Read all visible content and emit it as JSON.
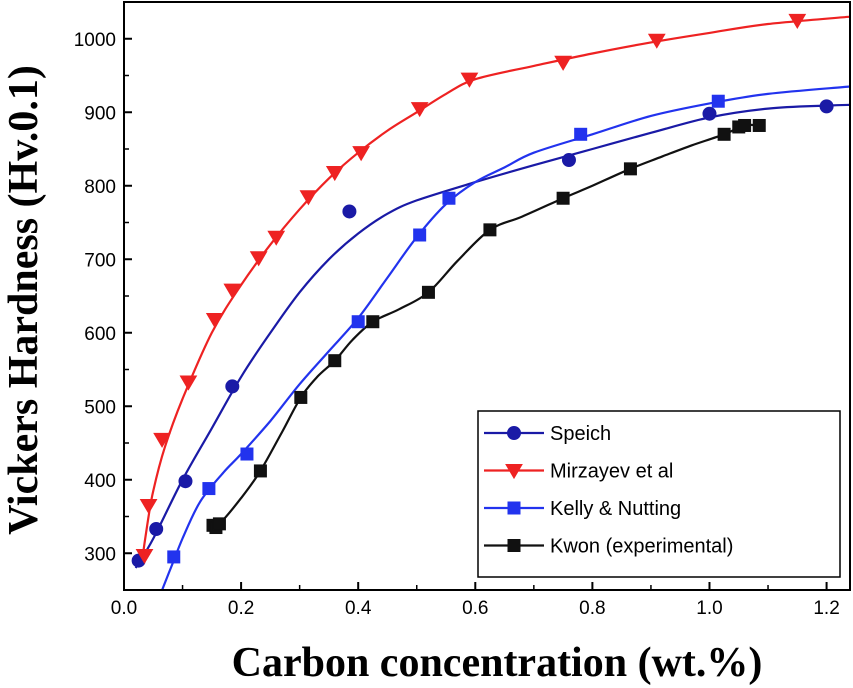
{
  "chart_data": {
    "type": "scatter",
    "xlabel": "Carbon concentration (wt.%)",
    "ylabel": "Vickers Hardness (Hv.0.1)",
    "xlim": [
      0,
      1.24
    ],
    "ylim": [
      250,
      1050
    ],
    "x_ticks": [
      "0.0",
      "0.2",
      "0.4",
      "0.6",
      "0.8",
      "1.0",
      "1.2"
    ],
    "y_ticks": [
      "300",
      "400",
      "500",
      "600",
      "700",
      "800",
      "900",
      "1000"
    ],
    "legend_position": "bottom-right",
    "grid": false,
    "series": [
      {
        "name": "Speich",
        "color": "#1a1aa6",
        "marker": "circle",
        "points": [
          [
            0.025,
            290
          ],
          [
            0.055,
            333
          ],
          [
            0.105,
            398
          ],
          [
            0.185,
            527
          ],
          [
            0.385,
            765
          ],
          [
            0.76,
            835
          ],
          [
            1.0,
            898
          ],
          [
            1.2,
            908
          ]
        ],
        "fit": [
          [
            0.02,
            280
          ],
          [
            0.05,
            320
          ],
          [
            0.1,
            400
          ],
          [
            0.15,
            470
          ],
          [
            0.2,
            540
          ],
          [
            0.25,
            600
          ],
          [
            0.3,
            655
          ],
          [
            0.35,
            700
          ],
          [
            0.4,
            735
          ],
          [
            0.45,
            762
          ],
          [
            0.5,
            780
          ],
          [
            0.6,
            805
          ],
          [
            0.7,
            828
          ],
          [
            0.8,
            850
          ],
          [
            0.9,
            872
          ],
          [
            1.0,
            893
          ],
          [
            1.1,
            905
          ],
          [
            1.2,
            909
          ],
          [
            1.24,
            910
          ]
        ]
      },
      {
        "name": "Mirzayev et al",
        "color": "#ee2222",
        "marker": "triangle-down",
        "points": [
          [
            0.035,
            297
          ],
          [
            0.042,
            365
          ],
          [
            0.065,
            455
          ],
          [
            0.11,
            533
          ],
          [
            0.155,
            618
          ],
          [
            0.185,
            658
          ],
          [
            0.23,
            702
          ],
          [
            0.26,
            730
          ],
          [
            0.315,
            785
          ],
          [
            0.36,
            818
          ],
          [
            0.405,
            845
          ],
          [
            0.505,
            905
          ],
          [
            0.59,
            945
          ],
          [
            0.75,
            968
          ],
          [
            0.91,
            998
          ],
          [
            1.15,
            1025
          ]
        ],
        "fit": [
          [
            0.03,
            285
          ],
          [
            0.04,
            340
          ],
          [
            0.05,
            385
          ],
          [
            0.07,
            445
          ],
          [
            0.1,
            510
          ],
          [
            0.15,
            600
          ],
          [
            0.2,
            665
          ],
          [
            0.25,
            720
          ],
          [
            0.3,
            768
          ],
          [
            0.35,
            810
          ],
          [
            0.4,
            845
          ],
          [
            0.45,
            875
          ],
          [
            0.5,
            900
          ],
          [
            0.55,
            925
          ],
          [
            0.6,
            945
          ],
          [
            0.7,
            963
          ],
          [
            0.8,
            980
          ],
          [
            0.9,
            995
          ],
          [
            1.0,
            1008
          ],
          [
            1.1,
            1020
          ],
          [
            1.24,
            1030
          ]
        ]
      },
      {
        "name": "Kelly & Nutting",
        "color": "#2233ee",
        "marker": "square",
        "points": [
          [
            0.085,
            295
          ],
          [
            0.145,
            388
          ],
          [
            0.21,
            435
          ],
          [
            0.4,
            615
          ],
          [
            0.505,
            733
          ],
          [
            0.555,
            783
          ],
          [
            0.78,
            870
          ],
          [
            1.015,
            915
          ]
        ],
        "fit": [
          [
            0.065,
            250
          ],
          [
            0.08,
            280
          ],
          [
            0.1,
            320
          ],
          [
            0.13,
            370
          ],
          [
            0.17,
            410
          ],
          [
            0.2,
            435
          ],
          [
            0.25,
            480
          ],
          [
            0.3,
            530
          ],
          [
            0.35,
            575
          ],
          [
            0.4,
            620
          ],
          [
            0.45,
            675
          ],
          [
            0.5,
            730
          ],
          [
            0.55,
            775
          ],
          [
            0.6,
            805
          ],
          [
            0.65,
            825
          ],
          [
            0.7,
            845
          ],
          [
            0.8,
            870
          ],
          [
            0.9,
            895
          ],
          [
            1.0,
            912
          ],
          [
            1.1,
            925
          ],
          [
            1.24,
            935
          ]
        ]
      },
      {
        "name": "Kwon (experimental)",
        "color": "#111111",
        "marker": "square",
        "points": [
          [
            0.152,
            338
          ],
          [
            0.157,
            335
          ],
          [
            0.163,
            340
          ],
          [
            0.233,
            412
          ],
          [
            0.302,
            512
          ],
          [
            0.36,
            562
          ],
          [
            0.425,
            615
          ],
          [
            0.52,
            655
          ],
          [
            0.625,
            740
          ],
          [
            0.75,
            783
          ],
          [
            0.865,
            823
          ],
          [
            1.025,
            870
          ],
          [
            1.05,
            880
          ],
          [
            1.06,
            882
          ],
          [
            1.085,
            882
          ]
        ],
        "fit": [
          [
            0.15,
            335
          ],
          [
            0.163,
            340
          ],
          [
            0.2,
            375
          ],
          [
            0.233,
            412
          ],
          [
            0.27,
            465
          ],
          [
            0.302,
            512
          ],
          [
            0.33,
            540
          ],
          [
            0.36,
            562
          ],
          [
            0.39,
            590
          ],
          [
            0.425,
            615
          ],
          [
            0.47,
            632
          ],
          [
            0.52,
            655
          ],
          [
            0.57,
            698
          ],
          [
            0.625,
            740
          ],
          [
            0.68,
            758
          ],
          [
            0.75,
            783
          ],
          [
            0.8,
            800
          ],
          [
            0.865,
            823
          ],
          [
            0.92,
            840
          ],
          [
            0.97,
            855
          ],
          [
            1.025,
            870
          ],
          [
            1.06,
            882
          ],
          [
            1.085,
            882
          ]
        ]
      }
    ]
  }
}
